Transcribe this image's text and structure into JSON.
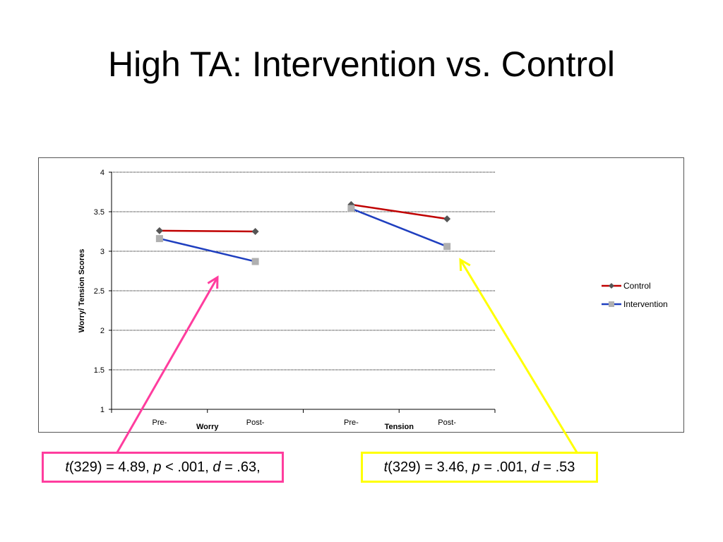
{
  "slide": {
    "title": "High TA: Intervention vs. Control"
  },
  "colors": {
    "control": "#c00000",
    "intervention": "#1f3fbf",
    "pink_arrow": "#ff3d9e",
    "yellow_arrow": "#ffff00"
  },
  "chart_data": {
    "type": "line",
    "ylabel": "Worry/ Tension Scores",
    "ylim": [
      1,
      4
    ],
    "yticks": [
      "1",
      "1.5",
      "2",
      "2.5",
      "3",
      "3.5",
      "4"
    ],
    "grid": true,
    "legend_position": "right",
    "groups": [
      {
        "label": "Worry",
        "categories": [
          "Pre-",
          "Post-"
        ]
      },
      {
        "label": "Tension",
        "categories": [
          "Pre-",
          "Post-"
        ]
      }
    ],
    "series": [
      {
        "name": "Control",
        "marker": "diamond",
        "color": "#c00000",
        "markerColor": "#555555",
        "values": [
          [
            3.26,
            3.25
          ],
          [
            3.59,
            3.41
          ]
        ]
      },
      {
        "name": "Intervention",
        "marker": "square",
        "color": "#1f3fbf",
        "markerColor": "#b0b0b0",
        "values": [
          [
            3.16,
            2.87
          ],
          [
            3.54,
            3.06
          ]
        ]
      }
    ]
  },
  "stats": {
    "worry": {
      "t_sym": "t",
      "t_val": "(329) = 4.89, ",
      "p_sym": "p",
      "p_val": " < .001, ",
      "d_sym": "d",
      "d_val": " = .63,"
    },
    "tension": {
      "t_sym": "t",
      "t_val": "(329) = 3.46, ",
      "p_sym": "p",
      "p_val": " = .001, ",
      "d_sym": "d",
      "d_val": " = .53"
    }
  }
}
